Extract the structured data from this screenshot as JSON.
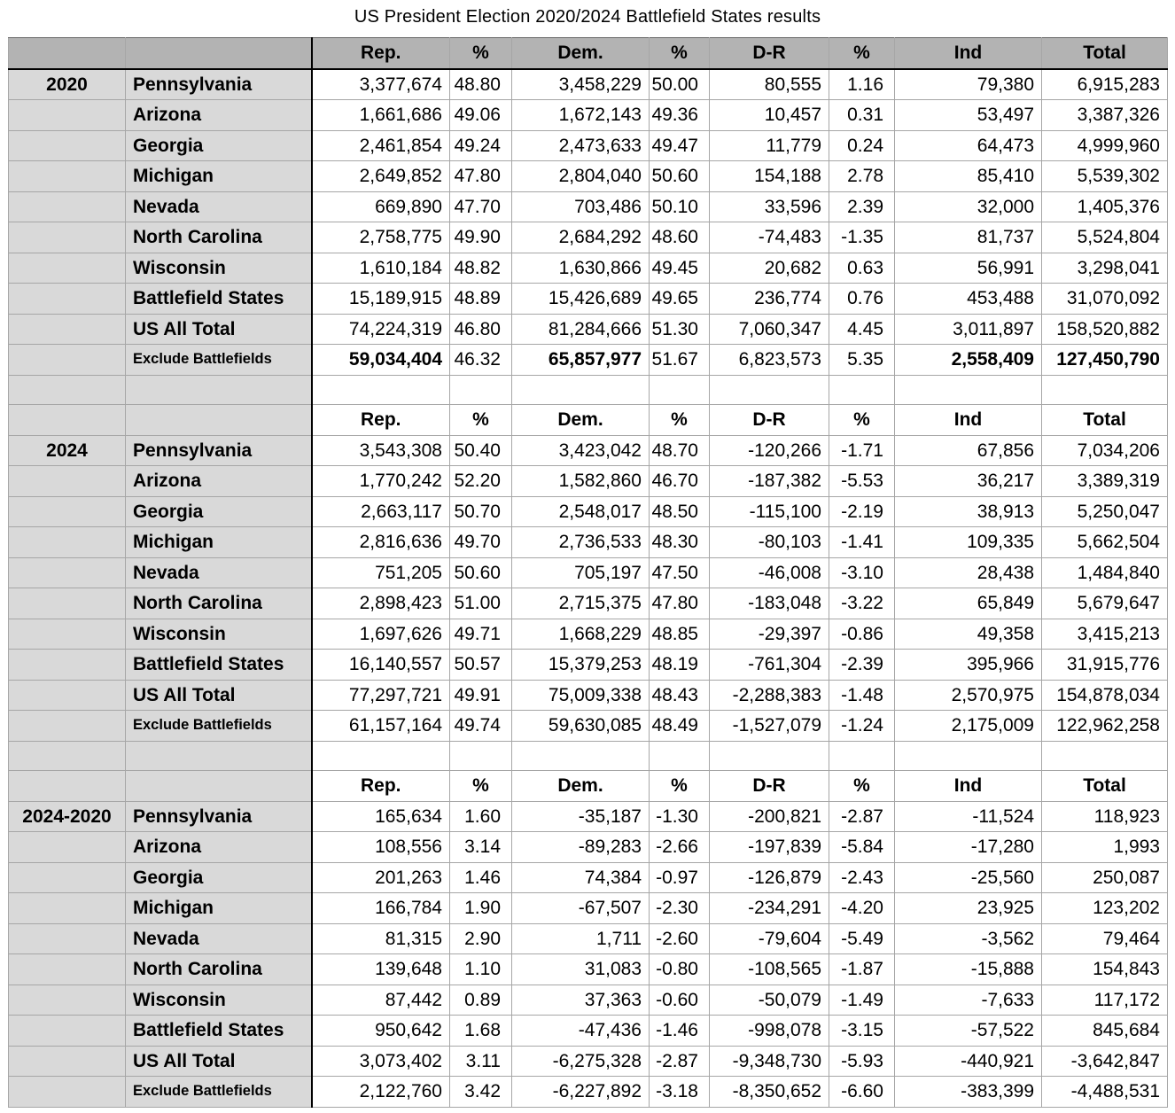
{
  "title": "US President Election 2020/2024 Battlefield States results",
  "colors": {
    "header_bg": "#b3b3b3",
    "side_bg": "#d9d9d9",
    "grid": "#a6a6a6",
    "strong_line": "#000000"
  },
  "table": {
    "columns": [
      "Rep.",
      "%",
      "Dem.",
      "%",
      "D-R",
      "%",
      "Ind",
      "Total"
    ],
    "sections": [
      {
        "year": "2020",
        "rows": [
          {
            "label": "Pennsylvania",
            "values": [
              "3,377,674",
              "48.80",
              "3,458,229",
              "50.00",
              "80,555",
              "1.16",
              "79,380",
              "6,915,283"
            ]
          },
          {
            "label": "Arizona",
            "values": [
              "1,661,686",
              "49.06",
              "1,672,143",
              "49.36",
              "10,457",
              "0.31",
              "53,497",
              "3,387,326"
            ]
          },
          {
            "label": "Georgia",
            "values": [
              "2,461,854",
              "49.24",
              "2,473,633",
              "49.47",
              "11,779",
              "0.24",
              "64,473",
              "4,999,960"
            ]
          },
          {
            "label": "Michigan",
            "values": [
              "2,649,852",
              "47.80",
              "2,804,040",
              "50.60",
              "154,188",
              "2.78",
              "85,410",
              "5,539,302"
            ]
          },
          {
            "label": "Nevada",
            "values": [
              "669,890",
              "47.70",
              "703,486",
              "50.10",
              "33,596",
              "2.39",
              "32,000",
              "1,405,376"
            ]
          },
          {
            "label": "North Carolina",
            "values": [
              "2,758,775",
              "49.90",
              "2,684,292",
              "48.60",
              "-74,483",
              "-1.35",
              "81,737",
              "5,524,804"
            ]
          },
          {
            "label": "Wisconsin",
            "values": [
              "1,610,184",
              "48.82",
              "1,630,866",
              "49.45",
              "20,682",
              "0.63",
              "56,991",
              "3,298,041"
            ]
          },
          {
            "label": "Battlefield States",
            "values": [
              "15,189,915",
              "48.89",
              "15,426,689",
              "49.65",
              "236,774",
              "0.76",
              "453,488",
              "31,070,092"
            ]
          },
          {
            "label": "US All Total",
            "values": [
              "74,224,319",
              "46.80",
              "81,284,666",
              "51.30",
              "7,060,347",
              "4.45",
              "3,011,897",
              "158,520,882"
            ]
          },
          {
            "label": "Exclude Battlefields",
            "small_label": true,
            "bold_cols": [
              0,
              2,
              6,
              7
            ],
            "values": [
              "59,034,404",
              "46.32",
              "65,857,977",
              "51.67",
              "6,823,573",
              "5.35",
              "2,558,409",
              "127,450,790"
            ]
          }
        ]
      },
      {
        "year": "2024",
        "rows": [
          {
            "label": "Pennsylvania",
            "values": [
              "3,543,308",
              "50.40",
              "3,423,042",
              "48.70",
              "-120,266",
              "-1.71",
              "67,856",
              "7,034,206"
            ]
          },
          {
            "label": "Arizona",
            "values": [
              "1,770,242",
              "52.20",
              "1,582,860",
              "46.70",
              "-187,382",
              "-5.53",
              "36,217",
              "3,389,319"
            ]
          },
          {
            "label": "Georgia",
            "values": [
              "2,663,117",
              "50.70",
              "2,548,017",
              "48.50",
              "-115,100",
              "-2.19",
              "38,913",
              "5,250,047"
            ]
          },
          {
            "label": "Michigan",
            "values": [
              "2,816,636",
              "49.70",
              "2,736,533",
              "48.30",
              "-80,103",
              "-1.41",
              "109,335",
              "5,662,504"
            ]
          },
          {
            "label": "Nevada",
            "values": [
              "751,205",
              "50.60",
              "705,197",
              "47.50",
              "-46,008",
              "-3.10",
              "28,438",
              "1,484,840"
            ]
          },
          {
            "label": "North Carolina",
            "values": [
              "2,898,423",
              "51.00",
              "2,715,375",
              "47.80",
              "-183,048",
              "-3.22",
              "65,849",
              "5,679,647"
            ]
          },
          {
            "label": "Wisconsin",
            "values": [
              "1,697,626",
              "49.71",
              "1,668,229",
              "48.85",
              "-29,397",
              "-0.86",
              "49,358",
              "3,415,213"
            ]
          },
          {
            "label": "Battlefield States",
            "values": [
              "16,140,557",
              "50.57",
              "15,379,253",
              "48.19",
              "-761,304",
              "-2.39",
              "395,966",
              "31,915,776"
            ]
          },
          {
            "label": "US All Total",
            "values": [
              "77,297,721",
              "49.91",
              "75,009,338",
              "48.43",
              "-2,288,383",
              "-1.48",
              "2,570,975",
              "154,878,034"
            ]
          },
          {
            "label": "Exclude Battlefields",
            "small_label": true,
            "values": [
              "61,157,164",
              "49.74",
              "59,630,085",
              "48.49",
              "-1,527,079",
              "-1.24",
              "2,175,009",
              "122,962,258"
            ]
          }
        ]
      },
      {
        "year": "2024-2020",
        "rows": [
          {
            "label": "Pennsylvania",
            "values": [
              "165,634",
              "1.60",
              "-35,187",
              "-1.30",
              "-200,821",
              "-2.87",
              "-11,524",
              "118,923"
            ]
          },
          {
            "label": "Arizona",
            "values": [
              "108,556",
              "3.14",
              "-89,283",
              "-2.66",
              "-197,839",
              "-5.84",
              "-17,280",
              "1,993"
            ]
          },
          {
            "label": "Georgia",
            "values": [
              "201,263",
              "1.46",
              "74,384",
              "-0.97",
              "-126,879",
              "-2.43",
              "-25,560",
              "250,087"
            ]
          },
          {
            "label": "Michigan",
            "values": [
              "166,784",
              "1.90",
              "-67,507",
              "-2.30",
              "-234,291",
              "-4.20",
              "23,925",
              "123,202"
            ]
          },
          {
            "label": "Nevada",
            "values": [
              "81,315",
              "2.90",
              "1,711",
              "-2.60",
              "-79,604",
              "-5.49",
              "-3,562",
              "79,464"
            ]
          },
          {
            "label": "North Carolina",
            "values": [
              "139,648",
              "1.10",
              "31,083",
              "-0.80",
              "-108,565",
              "-1.87",
              "-15,888",
              "154,843"
            ]
          },
          {
            "label": "Wisconsin",
            "values": [
              "87,442",
              "0.89",
              "37,363",
              "-0.60",
              "-50,079",
              "-1.49",
              "-7,633",
              "117,172"
            ]
          },
          {
            "label": "Battlefield States",
            "values": [
              "950,642",
              "1.68",
              "-47,436",
              "-1.46",
              "-998,078",
              "-3.15",
              "-57,522",
              "845,684"
            ]
          },
          {
            "label": "US All Total",
            "values": [
              "3,073,402",
              "3.11",
              "-6,275,328",
              "-2.87",
              "-9,348,730",
              "-5.93",
              "-440,921",
              "-3,642,847"
            ]
          },
          {
            "label": "Exclude Battlefields",
            "small_label": true,
            "values": [
              "2,122,760",
              "3.42",
              "-6,227,892",
              "-3.18",
              "-8,350,652",
              "-6.60",
              "-383,399",
              "-4,488,531"
            ]
          }
        ]
      }
    ]
  }
}
